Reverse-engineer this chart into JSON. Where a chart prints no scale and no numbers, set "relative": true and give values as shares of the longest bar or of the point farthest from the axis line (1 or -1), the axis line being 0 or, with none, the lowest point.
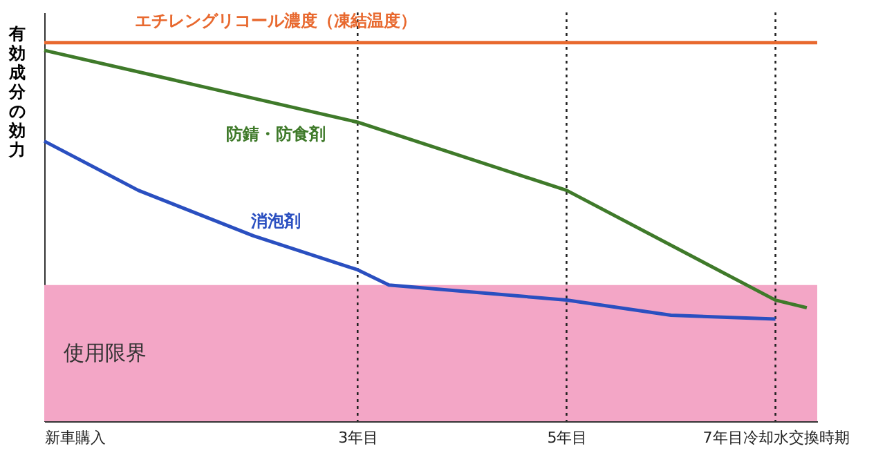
{
  "chart_data": {
    "type": "line",
    "relative": true,
    "ylabel": "有効成分の効力",
    "x": [
      0,
      0.9,
      2.0,
      3.0,
      3.3,
      5.0,
      6.0,
      7.0
    ],
    "xlim": [
      0,
      7.4
    ],
    "xticks": [
      {
        "value": 0,
        "label": "新車購入"
      },
      {
        "value": 3,
        "label": "3年目"
      },
      {
        "value": 5,
        "label": "5年目"
      },
      {
        "value": 7,
        "label": "7年目冷却水交換時期"
      }
    ],
    "series": [
      {
        "name": "エチレングリコール濃度（凍結温度）",
        "color": "#e8692f",
        "x": [
          0,
          7.4
        ],
        "values": [
          1,
          1
        ]
      },
      {
        "name": "防錆・防食剤",
        "color": "#3f7a2a",
        "x": [
          0,
          3,
          5,
          7,
          7.3
        ],
        "values": [
          0.98,
          0.79,
          0.61,
          0.32,
          0.3
        ]
      },
      {
        "name": "消泡剤",
        "color": "#2a4fc0",
        "values": [
          0.74,
          0.61,
          0.49,
          0.4,
          0.36,
          0.32,
          0.28,
          0.27
        ]
      }
    ],
    "bands": [
      {
        "axis": "y",
        "from": 0,
        "to": 0.36,
        "label": "使用限界",
        "color": "#f3a6c6"
      }
    ],
    "ref_lines": [
      {
        "axis": "x",
        "value": 3,
        "line_style": "dotted"
      },
      {
        "axis": "x",
        "value": 5,
        "line_style": "dotted"
      },
      {
        "axis": "x",
        "value": 7,
        "line_style": "dotted"
      }
    ],
    "marker": "none",
    "line_style": "solid"
  }
}
